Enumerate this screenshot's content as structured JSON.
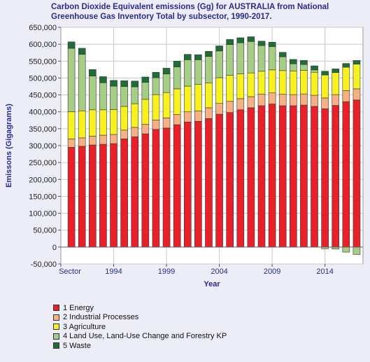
{
  "title": "Carbon Dioxide Equivalent emissions (Gg) for AUSTRALIA from   National Greenhouse Gas Inventory Total by subsector, 1990-2017.",
  "chart_data": {
    "type": "bar",
    "stacked": true,
    "title": "Carbon Dioxide Equivalent emissions (Gg) for AUSTRALIA from   National Greenhouse Gas Inventory Total by subsector, 1990-2017.",
    "xlabel": "Year",
    "ylabel": "Emissons (Gigagrams)",
    "ylim": [
      -50000,
      650000
    ],
    "yticks": [
      -50000,
      0,
      50000,
      100000,
      150000,
      200000,
      250000,
      300000,
      350000,
      400000,
      450000,
      500000,
      550000,
      600000,
      650000
    ],
    "ytick_labels": [
      "-50,000",
      "0",
      "50,000",
      "100,000",
      "150,000",
      "200,000",
      "250,000",
      "300,000",
      "350,000",
      "400,000",
      "450,000",
      "500,000",
      "550,000",
      "600,000",
      "650,000"
    ],
    "xtick_labels": [
      {
        "x": "Sector",
        "at": 1989
      },
      {
        "x": "1994",
        "at": 1994
      },
      {
        "x": "1999",
        "at": 1999
      },
      {
        "x": "2004",
        "at": 2004
      },
      {
        "x": "2009",
        "at": 2009
      },
      {
        "x": "2014",
        "at": 2014
      }
    ],
    "x_range": [
      1989,
      2017.6
    ],
    "grid": true,
    "legend_position": "bottom-left",
    "categories": [
      "1990",
      "1991",
      "1992",
      "1993",
      "1994",
      "1995",
      "1996",
      "1997",
      "1998",
      "1999",
      "2000",
      "2001",
      "2002",
      "2003",
      "2004",
      "2005",
      "2006",
      "2007",
      "2008",
      "2009",
      "2010",
      "2011",
      "2012",
      "2013",
      "2014",
      "2015",
      "2016",
      "2017"
    ],
    "series": [
      {
        "name": "1 Energy",
        "color": "#e8202a",
        "values": [
          295000,
          298000,
          302000,
          304000,
          306000,
          320000,
          326000,
          335000,
          348000,
          352000,
          362000,
          370000,
          372000,
          380000,
          393000,
          398000,
          406000,
          412000,
          418000,
          423000,
          418000,
          418000,
          420000,
          416000,
          409000,
          419000,
          430000,
          435000
        ]
      },
      {
        "name": "2 Industrial Processes",
        "color": "#f5b083",
        "values": [
          25000,
          25000,
          26000,
          27000,
          27000,
          26000,
          28000,
          28000,
          28000,
          30000,
          30000,
          30000,
          31000,
          32000,
          32000,
          33000,
          33000,
          33000,
          34000,
          33000,
          34000,
          33000,
          33000,
          33000,
          32000,
          32000,
          33000,
          33000
        ]
      },
      {
        "name": "3 Agriculture",
        "color": "#f7f121",
        "values": [
          80000,
          80000,
          78000,
          75000,
          74000,
          70000,
          70000,
          74000,
          75000,
          75000,
          76000,
          76000,
          78000,
          73000,
          76000,
          77000,
          73000,
          70000,
          68000,
          68000,
          70000,
          70000,
          70000,
          68000,
          68000,
          65000,
          69000,
          73000
        ]
      },
      {
        "name": "4 Land Use, Land-Use Change and Forestry KP",
        "color": "#a6cd86",
        "values": [
          188000,
          167000,
          100000,
          80000,
          69000,
          59000,
          50000,
          50000,
          50000,
          55000,
          65000,
          78000,
          73000,
          79000,
          79000,
          91000,
          92000,
          93000,
          76000,
          69000,
          41000,
          21000,
          17000,
          7000,
          -5000,
          -6000,
          -15000,
          -22000
        ]
      },
      {
        "name": "5 Waste",
        "color": "#1f6e37",
        "values": [
          19000,
          18000,
          19000,
          18000,
          17000,
          17000,
          17000,
          16000,
          16000,
          17000,
          17000,
          16000,
          15000,
          15000,
          15000,
          15000,
          15000,
          14000,
          13000,
          13000,
          13000,
          13000,
          12000,
          12000,
          11000,
          11000,
          11000,
          11000
        ]
      }
    ]
  }
}
